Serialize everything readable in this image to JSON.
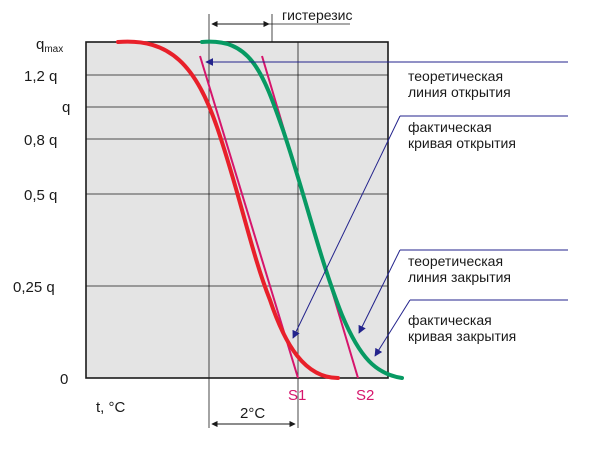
{
  "diagram": {
    "y_axis_labels": {
      "qmax_base": "q",
      "qmax_sub": "max",
      "q12": "1,2 q",
      "q10": "q",
      "q08": "0,8 q",
      "q05": "0,5 q",
      "q025": "0,25 q",
      "q0": "0"
    },
    "x_axis_label": "t, °C",
    "hysteresis_label": "гистерезис",
    "delta_label": "2°C",
    "s1_label": "S1",
    "s2_label": "S2",
    "annotations": {
      "theoretical_opening": [
        "теоретическая",
        "линия открытия"
      ],
      "actual_opening": [
        "фактическая",
        "кривая открытия"
      ],
      "theoretical_closing": [
        "теоретическая",
        "линия закрытия"
      ],
      "actual_closing": [
        "фактическая",
        "кривая закрытия"
      ]
    },
    "colors": {
      "plot_background": "#e4e4e4",
      "grid": "#1a1a1a",
      "closing_curve": "#e8202a",
      "opening_curve": "#079a63",
      "theoretical_line": "#d6156c",
      "pointer": "#23238c",
      "s_labels": "#d6156c"
    }
  }
}
